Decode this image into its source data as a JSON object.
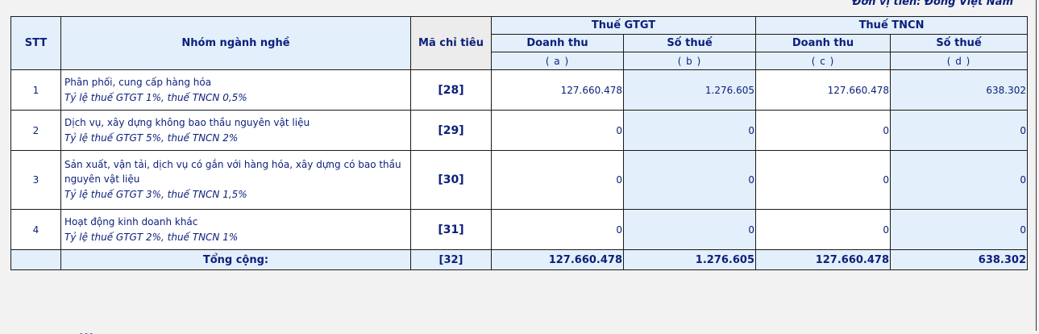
{
  "unit_label": "Đơn vị tiền: Đồng Việt Nam",
  "headers": {
    "stt": "STT",
    "group": "Nhóm ngành nghề",
    "code": "Mã chỉ tiêu",
    "vat": "Thuế GTGT",
    "pit": "Thuế TNCN",
    "revenue": "Doanh thu",
    "tax": "Số thuế",
    "col_a": "( a )",
    "col_b": "( b )",
    "col_c": "( c )",
    "col_d": "( d )"
  },
  "rows": [
    {
      "stt": "1",
      "name": "Phân phối, cung cấp hàng hóa",
      "rate": "Tỷ lệ thuế GTGT 1%, thuế TNCN 0,5%",
      "code": "[28]",
      "a": "127.660.478",
      "b": "1.276.605",
      "c": "127.660.478",
      "d": "638.302"
    },
    {
      "stt": "2",
      "name": "Dịch vụ, xây dựng không bao thầu  nguyên vật liệu",
      "rate": "Tỷ lệ thuế GTGT 5%, thuế TNCN 2%",
      "code": "[29]",
      "a": "0",
      "b": "0",
      "c": "0",
      "d": "0"
    },
    {
      "stt": "3",
      "name": "Sản xuất, vận tải, dịch vụ có gắn với hàng hóa, xây dựng có bao thầu nguyên vật liệu",
      "rate": "Tỷ lệ thuế GTGT 3%, thuế TNCN 1,5%",
      "code": "[30]",
      "a": "0",
      "b": "0",
      "c": "0",
      "d": "0"
    },
    {
      "stt": "4",
      "name": "Hoạt động kinh doanh khác",
      "rate": "Tỷ lệ thuế GTGT 2%, thuế TNCN 1%",
      "code": "[31]",
      "a": "0",
      "b": "0",
      "c": "0",
      "d": "0"
    }
  ],
  "total": {
    "label": "Tổng cộng:",
    "code": "[32]",
    "a": "127.660.478",
    "b": "1.276.605",
    "c": "127.660.478",
    "d": "638.302"
  },
  "footer_cut_text": "...",
  "colors": {
    "header_bg": "#e3effb",
    "text": "#0b1f7a"
  }
}
